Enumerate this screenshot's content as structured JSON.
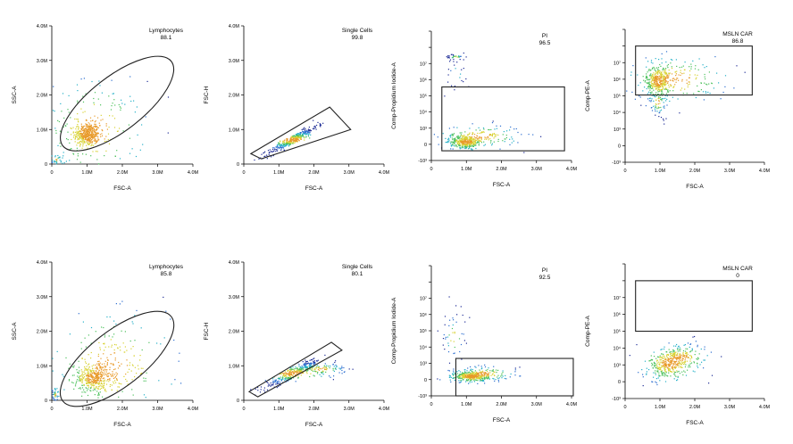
{
  "figure": {
    "colors": {
      "axis": "#000000",
      "gate": "#222222",
      "background": "#ffffff",
      "density": [
        "#1e2c96",
        "#2d6fd0",
        "#25b0c8",
        "#4cc15c",
        "#d8d232",
        "#e89a2a"
      ]
    }
  },
  "chart_data": [
    {
      "id": "r1c1",
      "type": "scatter",
      "xlabel": "FSC-A",
      "ylabel": "SSC-A",
      "scale": "linear",
      "xlim": [
        0,
        4000000
      ],
      "ylim": [
        0,
        4000000
      ],
      "xticks": [
        0,
        1000000,
        2000000,
        3000000,
        4000000
      ],
      "xtick_labels": [
        "0",
        "1.0M",
        "2.0M",
        "3.0M",
        "4.0M"
      ],
      "yticks": [
        0,
        1000000,
        2000000,
        3000000,
        4000000
      ],
      "ytick_labels": [
        "0",
        "1.0M",
        "2.0M",
        "3.0M",
        "4.0M"
      ],
      "gate": {
        "shape": "ellipse",
        "name": "Lymphocytes",
        "value": "88.1",
        "center": [
          1850000,
          1750000
        ],
        "rx": 1950000,
        "ry": 780000,
        "angle_deg": -38
      },
      "clusters": [
        {
          "x": 1000000,
          "y": 850000,
          "sx": 180000,
          "sy": 170000,
          "n": 420
        },
        {
          "x": 1200000,
          "y": 1000000,
          "sx": 700000,
          "sy": 700000,
          "n": 200
        },
        {
          "x": 150000,
          "y": 120000,
          "sx": 120000,
          "sy": 80000,
          "n": 40
        }
      ]
    },
    {
      "id": "r1c2",
      "type": "scatter",
      "xlabel": "FSC-A",
      "ylabel": "FSC-H",
      "scale": "linear",
      "xlim": [
        0,
        4000000
      ],
      "ylim": [
        0,
        4000000
      ],
      "xticks": [
        0,
        1000000,
        2000000,
        3000000,
        4000000
      ],
      "xtick_labels": [
        "0",
        "1.0M",
        "2.0M",
        "3.0M",
        "4.0M"
      ],
      "yticks": [
        0,
        1000000,
        2000000,
        3000000,
        4000000
      ],
      "ytick_labels": [
        "0",
        "1.0M",
        "2.0M",
        "3.0M",
        "4.0M"
      ],
      "gate": {
        "shape": "polygon",
        "name": "Single Cells",
        "value": "99.8",
        "points": [
          [
            200000,
            300000
          ],
          [
            2450000,
            1650000
          ],
          [
            3050000,
            1000000
          ],
          [
            500000,
            150000
          ]
        ]
      },
      "clusters": [
        {
          "x": 1400000,
          "y": 700000,
          "sx": 350000,
          "sy": 70000,
          "n": 380,
          "slope": 0.55
        }
      ]
    },
    {
      "id": "r1c3",
      "type": "scatter",
      "xlabel": "FSC-A",
      "ylabel": "Comp-Propidium Iodide-A",
      "scale": "biexp",
      "xlim": [
        0,
        4000000
      ],
      "ylim": [
        0,
        8
      ],
      "xticks": [
        0,
        1000000,
        2000000,
        3000000,
        4000000
      ],
      "xtick_labels": [
        "0",
        "1.0M",
        "2.0M",
        "3.0M",
        "4.0M"
      ],
      "yticks": [
        0,
        1,
        2,
        3,
        4,
        5,
        6,
        7,
        8
      ],
      "ytick_labels": [
        "-10³",
        "0",
        "10³",
        "10⁴",
        "10⁵",
        "10⁶",
        "10⁷",
        "",
        ""
      ],
      "gate": {
        "shape": "rect",
        "name": "PI",
        "value": "96.5",
        "x0": 300000,
        "x1": 3800000,
        "y0": 0.6,
        "y1": 4.55
      },
      "clusters": [
        {
          "x": 1000000,
          "y": 1.15,
          "sx": 220000,
          "sy": 0.18,
          "n": 360
        },
        {
          "x": 1400000,
          "y": 1.5,
          "sx": 600000,
          "sy": 0.35,
          "n": 160
        },
        {
          "x": 700000,
          "y": 6.4,
          "sx": 150000,
          "sy": 0.1,
          "n": 35
        },
        {
          "x": 700000,
          "y": 5.3,
          "sx": 200000,
          "sy": 0.6,
          "n": 20
        }
      ]
    },
    {
      "id": "r1c4",
      "type": "scatter",
      "xlabel": "FSC-A",
      "ylabel": "Comp-PE-A",
      "scale": "biexp",
      "xlim": [
        0,
        4000000
      ],
      "ylim": [
        0,
        8
      ],
      "xticks": [
        0,
        1000000,
        2000000,
        3000000,
        4000000
      ],
      "xtick_labels": [
        "0",
        "1.0M",
        "2.0M",
        "3.0M",
        "4.0M"
      ],
      "yticks": [
        0,
        1,
        2,
        3,
        4,
        5,
        6,
        7,
        8
      ],
      "ytick_labels": [
        "-10³",
        "0",
        "10³",
        "10⁴",
        "10⁵",
        "10⁶",
        "10⁷",
        "",
        ""
      ],
      "gate": {
        "shape": "rect",
        "name": "MSLN CAR",
        "value": "86.8",
        "x0": 300000,
        "x1": 3650000,
        "y0": 4.05,
        "y1": 7.0
      },
      "clusters": [
        {
          "x": 950000,
          "y": 4.9,
          "sx": 170000,
          "sy": 0.45,
          "n": 360
        },
        {
          "x": 1500000,
          "y": 5.0,
          "sx": 700000,
          "sy": 0.7,
          "n": 180
        },
        {
          "x": 950000,
          "y": 3.6,
          "sx": 150000,
          "sy": 0.5,
          "n": 60
        }
      ]
    },
    {
      "id": "r2c1",
      "type": "scatter",
      "xlabel": "FSC-A",
      "ylabel": "SSC-A",
      "scale": "linear",
      "xlim": [
        0,
        4000000
      ],
      "ylim": [
        0,
        4000000
      ],
      "xticks": [
        0,
        1000000,
        2000000,
        3000000,
        4000000
      ],
      "xtick_labels": [
        "0",
        "1.0M",
        "2.0M",
        "3.0M",
        "4.0M"
      ],
      "yticks": [
        0,
        1000000,
        2000000,
        3000000,
        4000000
      ],
      "ytick_labels": [
        "0",
        "1.0M",
        "2.0M",
        "3.0M",
        "4.0M"
      ],
      "gate": {
        "shape": "ellipse",
        "name": "Lymphocytes",
        "value": "85.8",
        "center": [
          1850000,
          1200000
        ],
        "rx": 1950000,
        "ry": 800000,
        "angle_deg": -38
      },
      "clusters": [
        {
          "x": 1200000,
          "y": 650000,
          "sx": 280000,
          "sy": 200000,
          "n": 400
        },
        {
          "x": 1700000,
          "y": 1000000,
          "sx": 800000,
          "sy": 700000,
          "n": 230
        },
        {
          "x": 100000,
          "y": 150000,
          "sx": 60000,
          "sy": 100000,
          "n": 40
        }
      ]
    },
    {
      "id": "r2c2",
      "type": "scatter",
      "xlabel": "FSC-A",
      "ylabel": "FSC-H",
      "scale": "linear",
      "xlim": [
        0,
        4000000
      ],
      "ylim": [
        0,
        4000000
      ],
      "xticks": [
        0,
        1000000,
        2000000,
        3000000,
        4000000
      ],
      "xtick_labels": [
        "0",
        "1.0M",
        "2.0M",
        "3.0M",
        "4.0M"
      ],
      "yticks": [
        0,
        1000000,
        2000000,
        3000000,
        4000000
      ],
      "ytick_labels": [
        "0",
        "1.0M",
        "2.0M",
        "3.0M",
        "4.0M"
      ],
      "gate": {
        "shape": "polygon",
        "name": "Single Cells",
        "value": "80.1",
        "points": [
          [
            150000,
            250000
          ],
          [
            2500000,
            1680000
          ],
          [
            2800000,
            1450000
          ],
          [
            400000,
            100000
          ]
        ]
      },
      "clusters": [
        {
          "x": 1400000,
          "y": 780000,
          "sx": 400000,
          "sy": 80000,
          "n": 320,
          "slope": 0.5
        },
        {
          "x": 2200000,
          "y": 900000,
          "sx": 350000,
          "sy": 90000,
          "n": 120,
          "slope": 0.05
        }
      ]
    },
    {
      "id": "r2c3",
      "type": "scatter",
      "xlabel": "FSC-A",
      "ylabel": "Comp-Propidium Iodide-A",
      "scale": "biexp",
      "xlim": [
        0,
        4000000
      ],
      "ylim": [
        0,
        8
      ],
      "xticks": [
        0,
        1000000,
        2000000,
        3000000,
        4000000
      ],
      "xtick_labels": [
        "0",
        "1.0M",
        "2.0M",
        "3.0M",
        "4.0M"
      ],
      "yticks": [
        0,
        1,
        2,
        3,
        4,
        5,
        6,
        7,
        8
      ],
      "ytick_labels": [
        "-10³",
        "0",
        "10³",
        "10⁴",
        "10⁵",
        "10⁶",
        "10⁷",
        "",
        ""
      ],
      "gate": {
        "shape": "rect",
        "name": "PI",
        "value": "92.5",
        "x0": 700000,
        "x1": 4050000,
        "y0": 0.0,
        "y1": 2.3
      },
      "clusters": [
        {
          "x": 1150000,
          "y": 1.2,
          "sx": 250000,
          "sy": 0.14,
          "n": 380
        },
        {
          "x": 1500000,
          "y": 1.35,
          "sx": 500000,
          "sy": 0.25,
          "n": 120
        },
        {
          "x": 650000,
          "y": 3.6,
          "sx": 220000,
          "sy": 0.9,
          "n": 45
        }
      ]
    },
    {
      "id": "r2c4",
      "type": "scatter",
      "xlabel": "FSC-A",
      "ylabel": "Comp-PE-A",
      "scale": "biexp",
      "xlim": [
        0,
        4000000
      ],
      "ylim": [
        0,
        8
      ],
      "xticks": [
        0,
        1000000,
        2000000,
        3000000,
        4000000
      ],
      "xtick_labels": [
        "0",
        "1.0M",
        "2.0M",
        "3.0M",
        "4.0M"
      ],
      "yticks": [
        0,
        1,
        2,
        3,
        4,
        5,
        6,
        7,
        8
      ],
      "ytick_labels": [
        "-10³",
        "0",
        "10³",
        "10⁴",
        "10⁵",
        "10⁶",
        "10⁷",
        "",
        ""
      ],
      "gate": {
        "shape": "rect",
        "name": "MSLN CAR",
        "value": "0",
        "x0": 300000,
        "x1": 3650000,
        "y0": 4.0,
        "y1": 7.0
      },
      "clusters": [
        {
          "x": 1300000,
          "y": 2.1,
          "sx": 300000,
          "sy": 0.4,
          "n": 380,
          "slope": 7e-07
        },
        {
          "x": 1600000,
          "y": 2.4,
          "sx": 500000,
          "sy": 0.5,
          "n": 120
        }
      ]
    }
  ]
}
